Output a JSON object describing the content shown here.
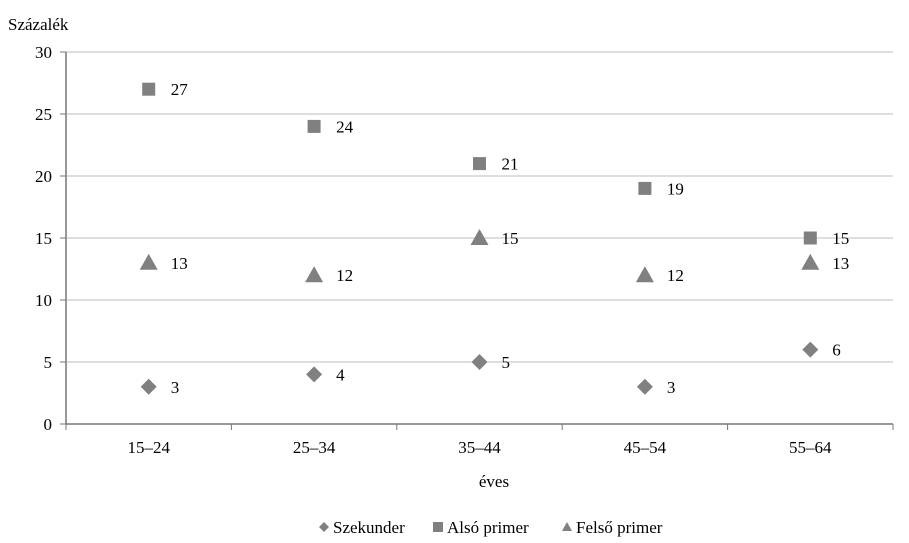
{
  "chart_data": {
    "type": "scatter",
    "ylabel": "Százalék",
    "xlabel": "éves",
    "categories": [
      "15–24",
      "25–34",
      "35–44",
      "45–54",
      "55–64"
    ],
    "ylim": [
      0,
      30
    ],
    "yticks": [
      0,
      5,
      10,
      15,
      20,
      25,
      30
    ],
    "grid": true,
    "legend_position": "bottom",
    "series": [
      {
        "name": "Szekunder",
        "marker": "diamond",
        "color": "#808080",
        "values": [
          3,
          4,
          5,
          3,
          6
        ]
      },
      {
        "name": "Alsó primer",
        "marker": "square",
        "color": "#808080",
        "values": [
          27,
          24,
          21,
          19,
          15
        ]
      },
      {
        "name": "Felső primer",
        "marker": "triangle",
        "color": "#808080",
        "values": [
          13,
          12,
          15,
          12,
          13
        ]
      }
    ]
  }
}
